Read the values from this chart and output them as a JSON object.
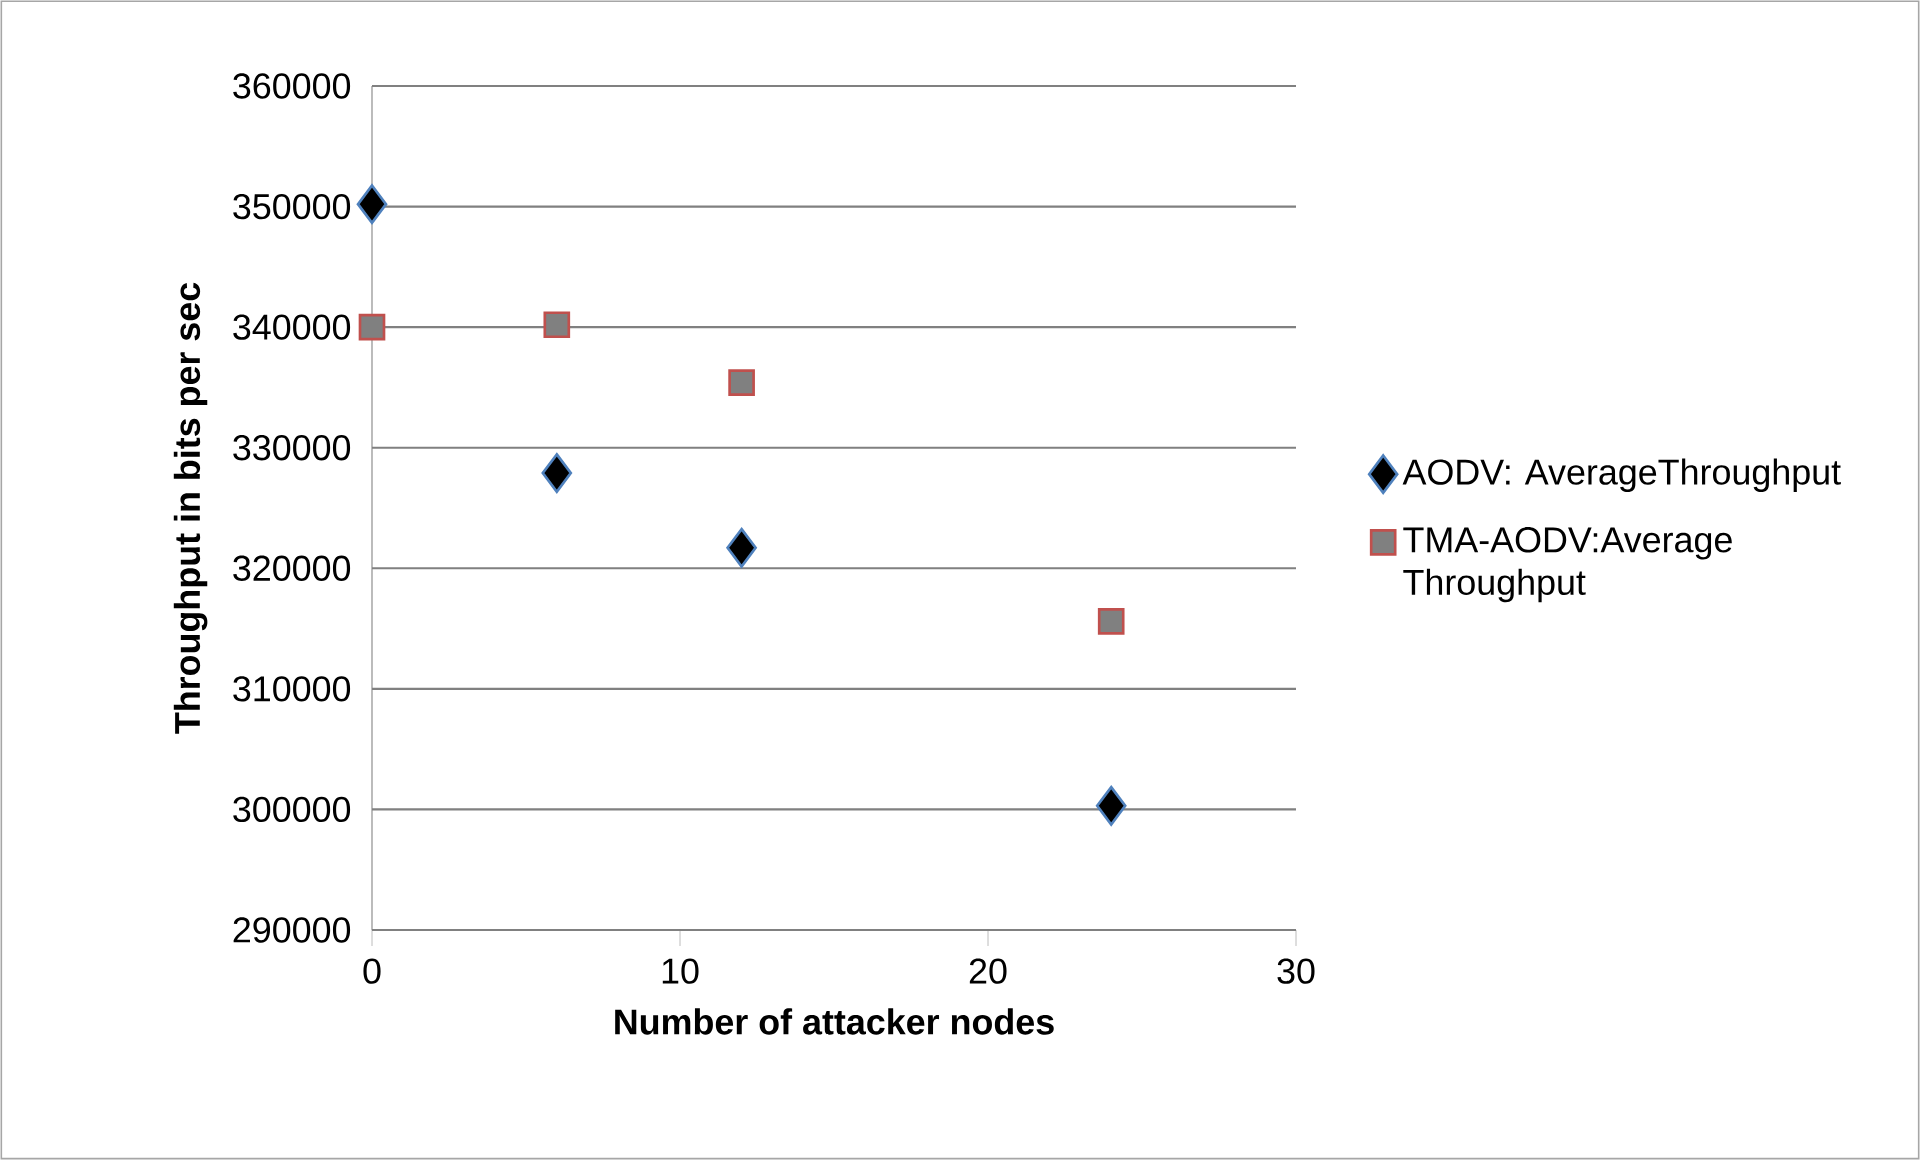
{
  "chart_data": {
    "type": "scatter",
    "xlabel": "Number of attacker nodes",
    "ylabel": "Throughput in bits per sec",
    "xlim": [
      0,
      30
    ],
    "xticks": [
      0,
      10,
      20,
      30
    ],
    "ylim": [
      290000,
      360000
    ],
    "yticks": [
      290000,
      300000,
      310000,
      320000,
      330000,
      340000,
      350000,
      360000
    ],
    "grid": "y",
    "legend": "right",
    "series": [
      {
        "name": "AODV: AverageThroughput",
        "color": "#000000",
        "marker": "diamond",
        "x": [
          0,
          6,
          12,
          24
        ],
        "values": [
          350200,
          327900,
          321700,
          300300
        ]
      },
      {
        "name": "TMA-AODV:Average Throughput",
        "color": "#808080",
        "marker": "square",
        "x": [
          0,
          6,
          12,
          24
        ],
        "values": [
          340000,
          340200,
          335400,
          315600
        ]
      }
    ]
  }
}
